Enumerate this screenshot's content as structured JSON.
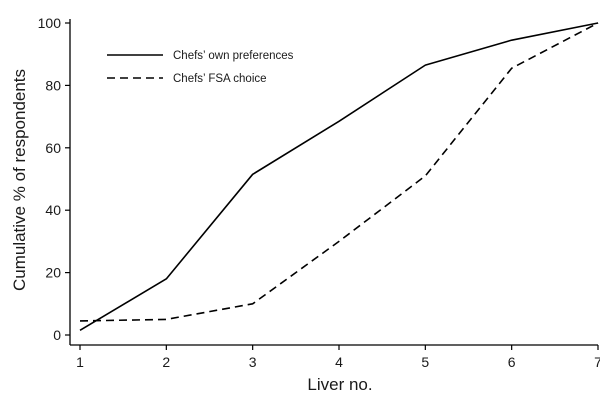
{
  "chart_data": {
    "type": "line",
    "x": [
      1,
      2,
      3,
      4,
      5,
      6,
      7
    ],
    "xlabel": "Liver no.",
    "ylabel": "Cumulative % of respondents",
    "xlim": [
      1,
      7
    ],
    "ylim": [
      0,
      100
    ],
    "xticks": [
      "1",
      "2",
      "3",
      "4",
      "5",
      "6",
      "7"
    ],
    "yticks": [
      "0",
      "20",
      "40",
      "60",
      "80",
      "100"
    ],
    "grid": false,
    "legend_position": "top-left",
    "series": [
      {
        "name": "Chefs’ own preferences",
        "style": "solid",
        "color": "#000000",
        "values": [
          1.5,
          18,
          51.5,
          68.5,
          86.5,
          94.5,
          100
        ]
      },
      {
        "name": "Chefs’ FSA choice",
        "style": "dashed",
        "color": "#000000",
        "values": [
          4.5,
          5,
          10,
          30,
          51,
          85.5,
          100
        ]
      }
    ]
  }
}
